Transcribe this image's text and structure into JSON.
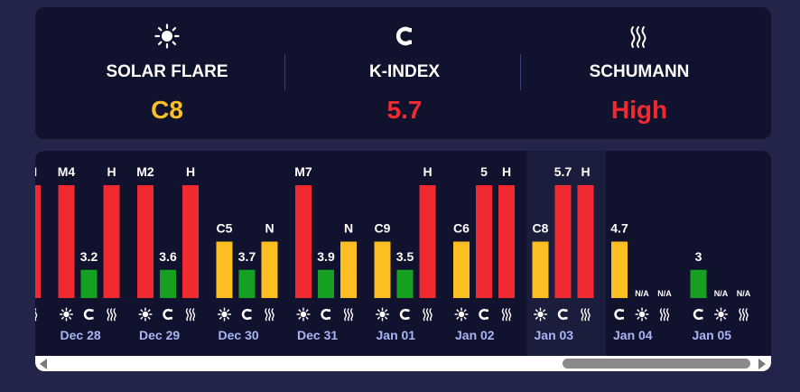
{
  "summary": {
    "metrics": [
      {
        "label": "SOLAR FLARE",
        "value": "C8",
        "color": "#fbbf24",
        "icon": "sun-icon"
      },
      {
        "label": "K-INDEX",
        "value": "5.7",
        "color": "#f02a30",
        "icon": "magnet-icon"
      },
      {
        "label": "SCHUMANN",
        "value": "High",
        "color": "#f02a30",
        "icon": "waves-icon"
      }
    ]
  },
  "chart_data": {
    "type": "bar",
    "highlighted_day": "Jan 03",
    "colors": {
      "red": "#f02a30",
      "yellow": "#fbbf24",
      "green": "#16a022"
    },
    "days": [
      {
        "date": "",
        "bars": [
          {
            "kind": "schumann",
            "label": "H",
            "level": 1.0,
            "color": "red"
          }
        ]
      },
      {
        "date": "Dec 28",
        "bars": [
          {
            "kind": "solar",
            "label": "M4",
            "level": 1.0,
            "color": "red"
          },
          {
            "kind": "kindex",
            "label": "3.2",
            "level": 0.25,
            "color": "green"
          },
          {
            "kind": "schumann",
            "label": "H",
            "level": 1.0,
            "color": "red"
          }
        ]
      },
      {
        "date": "Dec 29",
        "bars": [
          {
            "kind": "solar",
            "label": "M2",
            "level": 1.0,
            "color": "red"
          },
          {
            "kind": "kindex",
            "label": "3.6",
            "level": 0.25,
            "color": "green"
          },
          {
            "kind": "schumann",
            "label": "H",
            "level": 1.0,
            "color": "red"
          }
        ]
      },
      {
        "date": "Dec 30",
        "bars": [
          {
            "kind": "solar",
            "label": "C5",
            "level": 0.5,
            "color": "yellow"
          },
          {
            "kind": "kindex",
            "label": "3.7",
            "level": 0.25,
            "color": "green"
          },
          {
            "kind": "schumann",
            "label": "N",
            "level": 0.5,
            "color": "yellow"
          }
        ]
      },
      {
        "date": "Dec 31",
        "bars": [
          {
            "kind": "solar",
            "label": "M7",
            "level": 1.0,
            "color": "red"
          },
          {
            "kind": "kindex",
            "label": "3.9",
            "level": 0.25,
            "color": "green"
          },
          {
            "kind": "schumann",
            "label": "N",
            "level": 0.5,
            "color": "yellow"
          }
        ]
      },
      {
        "date": "Jan 01",
        "bars": [
          {
            "kind": "solar",
            "label": "C9",
            "level": 0.5,
            "color": "yellow"
          },
          {
            "kind": "kindex",
            "label": "3.5",
            "level": 0.25,
            "color": "green"
          },
          {
            "kind": "schumann",
            "label": "H",
            "level": 1.0,
            "color": "red"
          }
        ]
      },
      {
        "date": "Jan 02",
        "bars": [
          {
            "kind": "solar",
            "label": "C6",
            "level": 0.5,
            "color": "yellow"
          },
          {
            "kind": "kindex",
            "label": "5",
            "level": 1.0,
            "color": "red"
          },
          {
            "kind": "schumann",
            "label": "H",
            "level": 1.0,
            "color": "red"
          }
        ]
      },
      {
        "date": "Jan 03",
        "bars": [
          {
            "kind": "solar",
            "label": "C8",
            "level": 0.5,
            "color": "yellow"
          },
          {
            "kind": "kindex",
            "label": "5.7",
            "level": 1.0,
            "color": "red"
          },
          {
            "kind": "schumann",
            "label": "H",
            "level": 1.0,
            "color": "red"
          }
        ]
      },
      {
        "date": "Jan 04",
        "bars": [
          {
            "kind": "kindex",
            "label": "4.7",
            "level": 0.5,
            "color": "yellow"
          },
          {
            "kind": "solar",
            "label": "N/A",
            "level": 0,
            "color": "none"
          },
          {
            "kind": "schumann",
            "label": "N/A",
            "level": 0,
            "color": "none"
          }
        ]
      },
      {
        "date": "Jan 05",
        "bars": [
          {
            "kind": "kindex",
            "label": "3",
            "level": 0.25,
            "color": "green"
          },
          {
            "kind": "solar",
            "label": "N/A",
            "level": 0,
            "color": "none"
          },
          {
            "kind": "schumann",
            "label": "N/A",
            "level": 0,
            "color": "none"
          }
        ]
      }
    ]
  }
}
